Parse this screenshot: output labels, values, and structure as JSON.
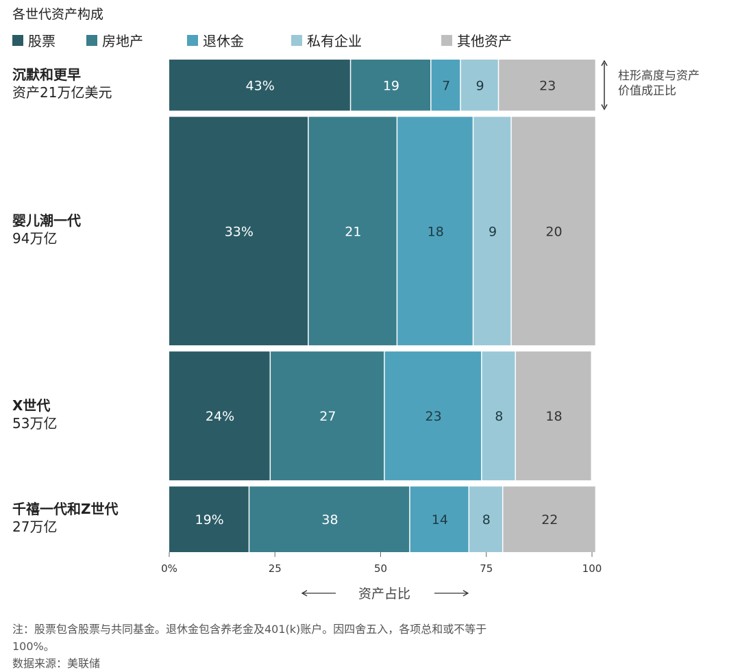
{
  "chart_data": {
    "type": "bar",
    "title": "各世代资产构成",
    "orientation": "horizontal",
    "stacked": true,
    "variable_height": true,
    "xlabel": "资产占比",
    "xlim": [
      0,
      100
    ],
    "xticks": [
      "0%",
      "25",
      "50",
      "75",
      "100"
    ],
    "legend_position": "top",
    "series": [
      {
        "name": "股票",
        "color": "#2b5c66"
      },
      {
        "name": "房地产",
        "color": "#3a7e8b"
      },
      {
        "name": "退休金",
        "color": "#4fa2bc"
      },
      {
        "name": "私有企业",
        "color": "#9bc8d7"
      },
      {
        "name": "其他资产",
        "color": "#bebebe"
      }
    ],
    "rows": [
      {
        "generation": "沉默和更早",
        "assets": "资产21万亿美元",
        "assets_trillion": 21,
        "values": [
          43,
          19,
          7,
          9,
          23
        ],
        "labels": [
          "43%",
          "19",
          "7",
          "9",
          "23"
        ]
      },
      {
        "generation": "婴儿潮一代",
        "assets": "94万亿",
        "assets_trillion": 94,
        "values": [
          33,
          21,
          18,
          9,
          20
        ],
        "labels": [
          "33%",
          "21",
          "18",
          "9",
          "20"
        ]
      },
      {
        "generation": "X世代",
        "assets": "53万亿",
        "assets_trillion": 53,
        "values": [
          24,
          27,
          23,
          8,
          18
        ],
        "labels": [
          "24%",
          "27",
          "23",
          "8",
          "18"
        ]
      },
      {
        "generation": "千禧一代和Z世代",
        "assets": "27万亿",
        "assets_trillion": 27,
        "values": [
          19,
          38,
          14,
          8,
          22
        ],
        "labels": [
          "19%",
          "38",
          "14",
          "8",
          "22"
        ]
      }
    ],
    "annotation": "柱形高度与资产价值成正比"
  },
  "note_line1": "注：股票包含股票与共同基金。退休金包含养老金及401(k)账户。因四舍五入，各项总和或不等于",
  "note_line2": "100%。",
  "source": "数据来源：美联储"
}
